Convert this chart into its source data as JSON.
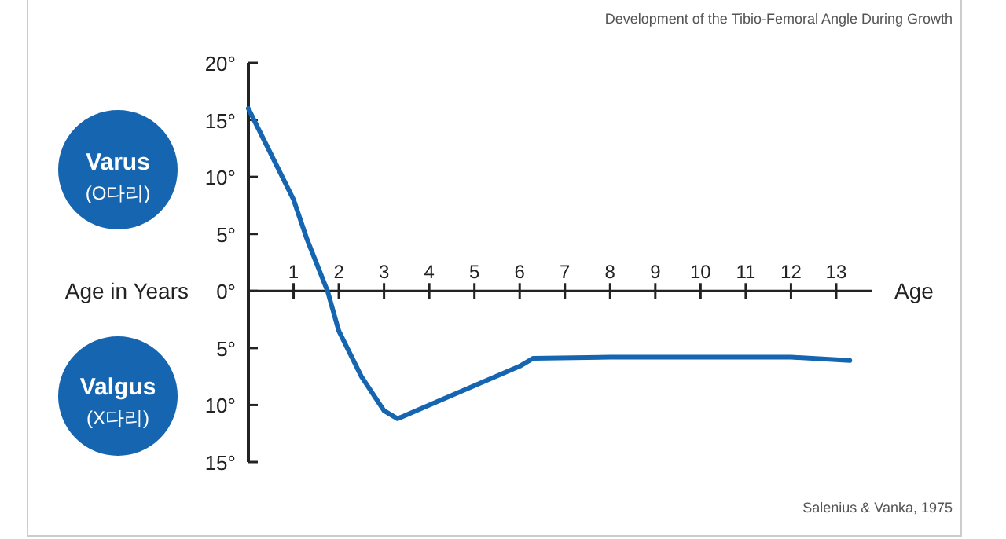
{
  "chart_data": {
    "type": "line",
    "title": "Development of the Tibio-Femoral Angle During Growth",
    "xlabel": "Age",
    "annotations": [
      "Varus",
      "(O다리)",
      "Valgus",
      "(X다리)",
      "Age in Years",
      "Salenius & Vanka, 1975"
    ],
    "series": [
      {
        "color": "#1565b0",
        "x": [
          0,
          0.5,
          1,
          1.3,
          1.75,
          2,
          2.5,
          3,
          3.3,
          4,
          5,
          6,
          6.3,
          8,
          10,
          12,
          13.3
        ],
        "values": [
          16,
          12,
          8,
          4.5,
          0,
          -3.5,
          -7.5,
          -10.5,
          -11.2,
          -10,
          -8.3,
          -6.6,
          -5.9,
          -5.8,
          -5.8,
          -5.8,
          -6.1
        ]
      }
    ],
    "xlim": [
      0,
      13.8
    ],
    "ylim": [
      -15,
      20
    ],
    "xticks": [
      1,
      2,
      3,
      4,
      5,
      6,
      7,
      8,
      9,
      10,
      11,
      12,
      13
    ],
    "yticks": [
      {
        "value": -15,
        "label": "15°"
      },
      {
        "value": -10,
        "label": "10°"
      },
      {
        "value": -5,
        "label": "5°"
      },
      {
        "value": 0,
        "label": "0°"
      },
      {
        "value": 5,
        "label": "5°"
      },
      {
        "value": 10,
        "label": "10°"
      },
      {
        "value": 15,
        "label": "15°"
      },
      {
        "value": 20,
        "label": "20°"
      }
    ],
    "line_style": "solid",
    "marker": "none"
  }
}
